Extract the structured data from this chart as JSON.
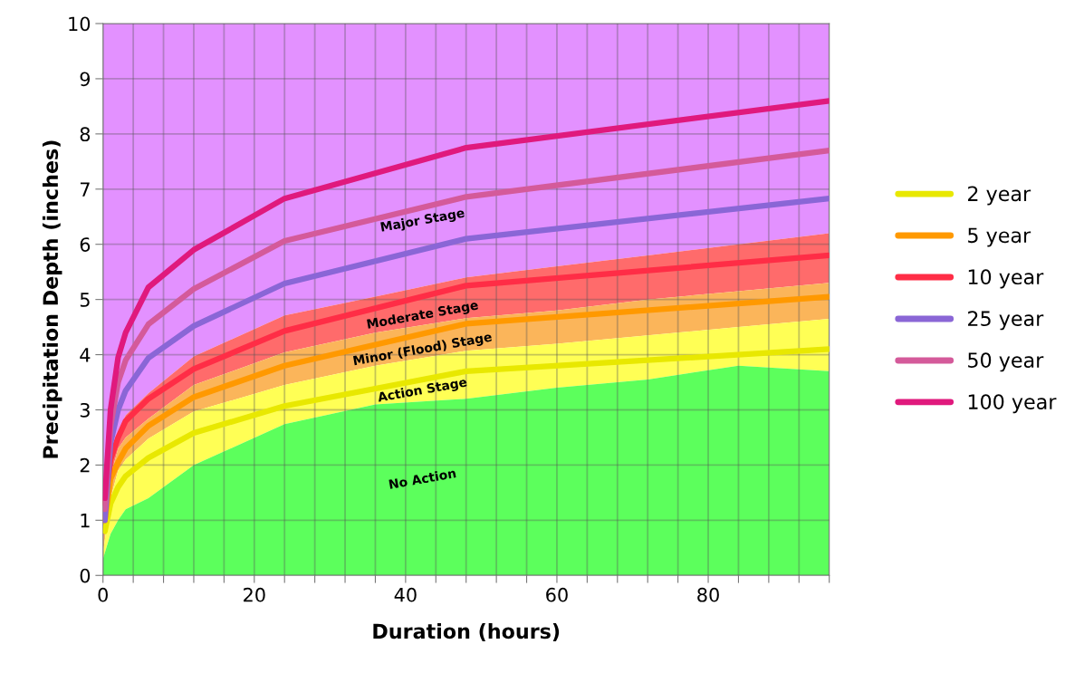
{
  "chart_data": {
    "type": "line",
    "xlabel": "Duration (hours)",
    "ylabel": "Precipitation Depth (inches)",
    "x": [
      0.25,
      1,
      2,
      3,
      6,
      12,
      24,
      48,
      96
    ],
    "xlim": [
      0,
      96
    ],
    "ylim": [
      0,
      10
    ],
    "xticks": [
      0,
      {
        "value": 4,
        "label": null
      },
      {
        "value": 8,
        "label": null
      },
      {
        "value": 12,
        "label": null
      },
      {
        "value": 16,
        "label": null
      },
      20,
      {
        "value": 24,
        "label": null
      },
      {
        "value": 28,
        "label": null
      },
      {
        "value": 32,
        "label": null
      },
      {
        "value": 36,
        "label": null
      },
      40,
      {
        "value": 44,
        "label": null
      },
      {
        "value": 48,
        "label": null
      },
      {
        "value": 52,
        "label": null
      },
      {
        "value": 56,
        "label": null
      },
      60,
      {
        "value": 64,
        "label": null
      },
      {
        "value": 68,
        "label": null
      },
      {
        "value": 72,
        "label": null
      },
      {
        "value": 76,
        "label": null
      },
      80,
      {
        "value": 84,
        "label": null
      },
      {
        "value": 88,
        "label": null
      },
      {
        "value": 92,
        "label": null
      },
      {
        "value": 96,
        "label": null
      }
    ],
    "yticks": [
      0,
      1,
      2,
      3,
      4,
      5,
      6,
      7,
      8,
      9,
      10
    ],
    "grid": true,
    "legend": "right",
    "line_style": "solid",
    "marker": "none",
    "series": [
      {
        "name": "Major Stage",
        "type": "area",
        "color": "#e391ff",
        "x": [
          0,
          1,
          2,
          3,
          6,
          12,
          24,
          36,
          48,
          60,
          72,
          84,
          96
        ],
        "values": [
          10,
          10,
          10,
          10,
          10,
          10,
          10,
          10,
          10,
          10,
          10,
          10,
          10
        ]
      },
      {
        "name": "Moderate Stage",
        "type": "area",
        "color": "#ff6b6b",
        "x": [
          0,
          1,
          2,
          3,
          6,
          12,
          24,
          36,
          48,
          60,
          72,
          84,
          96
        ],
        "values": [
          0.9,
          2.1,
          2.6,
          2.9,
          3.3,
          3.97,
          4.71,
          5.05,
          5.4,
          5.6,
          5.8,
          6.0,
          6.2
        ]
      },
      {
        "name": "Minor (Flood) Stage",
        "type": "area",
        "color": "#fbb55a",
        "x": [
          0,
          1,
          2,
          3,
          6,
          12,
          24,
          36,
          48,
          60,
          72,
          84,
          96
        ],
        "values": [
          0.6,
          1.8,
          2.3,
          2.5,
          2.84,
          3.45,
          4.04,
          4.4,
          4.66,
          4.8,
          5.0,
          5.15,
          5.3
        ]
      },
      {
        "name": "Action Stage",
        "type": "area",
        "color": "#ffff55",
        "x": [
          0,
          1,
          2,
          3,
          6,
          12,
          24,
          36,
          48,
          60,
          72,
          84,
          96
        ],
        "values": [
          0.4,
          1.4,
          1.9,
          2.1,
          2.48,
          2.97,
          3.45,
          3.8,
          4.07,
          4.2,
          4.35,
          4.5,
          4.65
        ]
      },
      {
        "name": "No Action",
        "type": "area",
        "color": "#5cff5c",
        "x": [
          0,
          1,
          2,
          3,
          6,
          12,
          24,
          36,
          48,
          60,
          72,
          84,
          96
        ],
        "values": [
          0.3,
          0.75,
          1.0,
          1.2,
          1.4,
          2.0,
          2.74,
          3.1,
          3.2,
          3.4,
          3.55,
          3.8,
          3.7
        ]
      },
      {
        "name": "2 year",
        "color": "#e8e800",
        "values": [
          0.8,
          1.3,
          1.6,
          1.8,
          2.13,
          2.58,
          3.07,
          3.7,
          4.1
        ]
      },
      {
        "name": "5 year",
        "color": "#ff9900",
        "values": [
          1.0,
          1.75,
          2.05,
          2.3,
          2.71,
          3.23,
          3.8,
          4.56,
          5.05
        ]
      },
      {
        "name": "10 year",
        "color": "#ff2d46",
        "values": [
          1.3,
          2.1,
          2.5,
          2.8,
          3.2,
          3.74,
          4.43,
          5.25,
          5.8
        ]
      },
      {
        "name": "25 year",
        "color": "#8a66d6",
        "values": [
          1.0,
          2.4,
          3.0,
          3.35,
          3.94,
          4.52,
          5.29,
          6.1,
          6.83
        ]
      },
      {
        "name": "50 year",
        "color": "#d45a9a",
        "values": [
          1.2,
          2.7,
          3.5,
          3.9,
          4.55,
          5.19,
          6.06,
          6.86,
          7.7
        ]
      },
      {
        "name": "100 year",
        "color": "#e0197d",
        "values": [
          1.4,
          3.0,
          3.95,
          4.4,
          5.22,
          5.9,
          6.83,
          7.75,
          8.6
        ]
      }
    ]
  }
}
